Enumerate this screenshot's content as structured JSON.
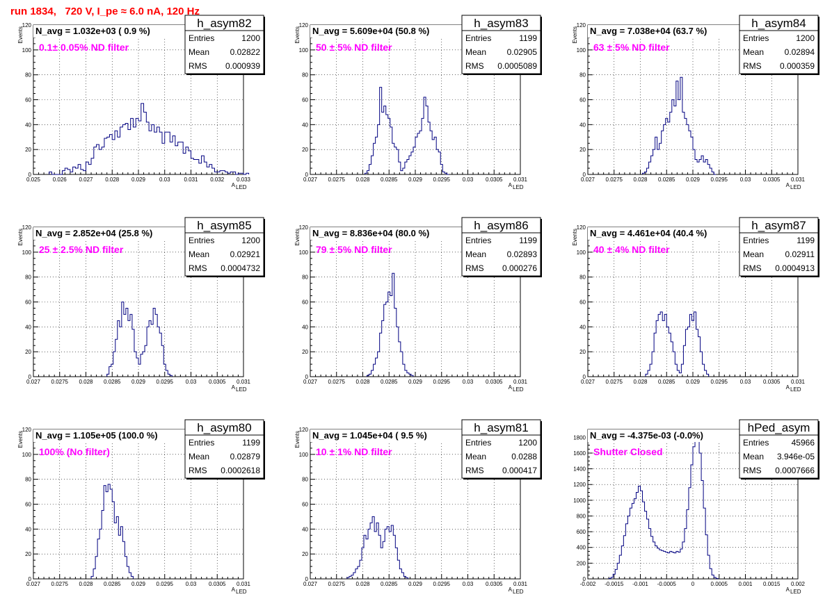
{
  "page": {
    "title": "run 1834,   720 V, I_pe ≈ 6.0 nA, 120 Hz"
  },
  "chart_data": [
    {
      "type": "bar",
      "hist_name": "h_asym82",
      "nbox": "N_avg = 1.032e+03 ( 0.9 %)",
      "filter_label": "0.1± 0.05% ND filter",
      "stats": [
        [
          "Entries",
          "1200"
        ],
        [
          "Mean",
          "0.02822"
        ],
        [
          "RMS",
          "0.000939"
        ]
      ],
      "xlim": [
        0.025,
        0.033
      ],
      "ylim": [
        0,
        120
      ],
      "xticks": [
        0.025,
        0.026,
        0.027,
        0.028,
        0.029,
        0.03,
        0.031,
        0.032,
        0.033
      ],
      "xtick_labels": [
        "0.025",
        "0.026",
        "0.027",
        "0.028",
        "0.029",
        "0.03",
        "0.031",
        "0.032",
        "0.033"
      ],
      "yticks": [
        0,
        20,
        40,
        60,
        80,
        100,
        120
      ],
      "ytick_labels": [
        "0",
        "20",
        "40",
        "60",
        "80",
        "100",
        "120"
      ],
      "xlabel": "A",
      "xlabel_sub": "LED",
      "ylabel": "Events",
      "bin_start": 0.0256,
      "bin_width": 0.0001,
      "values": [
        2,
        0,
        0,
        0,
        0,
        3,
        5,
        4,
        2,
        6,
        5,
        8,
        4,
        3,
        10,
        8,
        13,
        22,
        24,
        20,
        22,
        29,
        30,
        32,
        28,
        35,
        30,
        38,
        40,
        41,
        36,
        45,
        38,
        45,
        43,
        57,
        50,
        42,
        35,
        40,
        34,
        38,
        34,
        25,
        34,
        34,
        26,
        31,
        23,
        26,
        26,
        17,
        22,
        19,
        13,
        12,
        12,
        9,
        15,
        10,
        6,
        8,
        5,
        2,
        2,
        3,
        3,
        2,
        1,
        2,
        2,
        0,
        1,
        1,
        0,
        1
      ]
    },
    {
      "type": "bar",
      "hist_name": "h_asym83",
      "nbox": "N_avg = 5.609e+04 (50.8 %)",
      "filter_label": "50 ± 5% ND filter",
      "stats": [
        [
          "Entries",
          "1199"
        ],
        [
          "Mean",
          "0.02905"
        ],
        [
          "RMS",
          "0.0005089"
        ]
      ],
      "xlim": [
        0.027,
        0.031
      ],
      "ylim": [
        0,
        120
      ],
      "xticks": [
        0.027,
        0.0275,
        0.028,
        0.0285,
        0.029,
        0.0295,
        0.03,
        0.0305,
        0.031
      ],
      "xtick_labels": [
        "0.027",
        "0.0275",
        "0.028",
        "0.0285",
        "0.029",
        "0.0295",
        "0.03",
        "0.0305",
        "0.031"
      ],
      "yticks": [
        0,
        20,
        40,
        60,
        80,
        100,
        120
      ],
      "ytick_labels": [
        "0",
        "20",
        "40",
        "60",
        "80",
        "100",
        "120"
      ],
      "xlabel": "A",
      "xlabel_sub": "LED",
      "ylabel": "Events",
      "bin_start": 0.02804,
      "bin_width": 4e-05,
      "values": [
        1,
        3,
        8,
        15,
        25,
        30,
        40,
        70,
        50,
        55,
        48,
        45,
        38,
        25,
        22,
        20,
        10,
        3,
        5,
        10,
        12,
        15,
        18,
        22,
        30,
        33,
        35,
        45,
        62,
        55,
        42,
        35,
        28,
        30,
        20,
        18,
        8,
        2,
        1,
        0
      ]
    },
    {
      "type": "bar",
      "hist_name": "h_asym84",
      "nbox": "N_avg = 7.038e+04 (63.7 %)",
      "filter_label": "63 ± 5% ND filter",
      "stats": [
        [
          "Entries",
          "1200"
        ],
        [
          "Mean",
          "0.02894"
        ],
        [
          "RMS",
          "0.000359"
        ]
      ],
      "xlim": [
        0.027,
        0.031
      ],
      "ylim": [
        0,
        120
      ],
      "xticks": [
        0.027,
        0.0275,
        0.028,
        0.0285,
        0.029,
        0.0295,
        0.03,
        0.0305,
        0.031
      ],
      "xtick_labels": [
        "0.027",
        "0.0275",
        "0.028",
        "0.0285",
        "0.029",
        "0.0295",
        "0.03",
        "0.0305",
        "0.031"
      ],
      "yticks": [
        0,
        20,
        40,
        60,
        80,
        100,
        120
      ],
      "ytick_labels": [
        "0",
        "20",
        "40",
        "60",
        "80",
        "100",
        "120"
      ],
      "xlabel": "A",
      "xlabel_sub": "LED",
      "ylabel": "Events",
      "bin_start": 0.02804,
      "bin_width": 4e-05,
      "values": [
        1,
        2,
        5,
        10,
        15,
        20,
        30,
        20,
        25,
        35,
        40,
        45,
        42,
        50,
        60,
        55,
        75,
        60,
        78,
        50,
        45,
        40,
        35,
        30,
        20,
        12,
        10,
        12,
        15,
        10,
        12,
        8,
        5,
        2,
        0
      ]
    },
    {
      "type": "bar",
      "hist_name": "h_asym85",
      "nbox": "N_avg = 2.852e+04 (25.8 %)",
      "filter_label": "25 ± 2.5% ND filter",
      "stats": [
        [
          "Entries",
          "1200"
        ],
        [
          "Mean",
          "0.02921"
        ],
        [
          "RMS",
          "0.0004732"
        ]
      ],
      "xlim": [
        0.027,
        0.031
      ],
      "ylim": [
        0,
        120
      ],
      "xticks": [
        0.027,
        0.0275,
        0.028,
        0.0285,
        0.029,
        0.0295,
        0.03,
        0.0305,
        0.031
      ],
      "xtick_labels": [
        "0.027",
        "0.0275",
        "0.028",
        "0.0285",
        "0.029",
        "0.0295",
        "0.03",
        "0.0305",
        "0.031"
      ],
      "yticks": [
        0,
        20,
        40,
        60,
        80,
        100,
        120
      ],
      "ytick_labels": [
        "0",
        "20",
        "40",
        "60",
        "80",
        "100",
        "120"
      ],
      "xlabel": "A",
      "xlabel_sub": "LED",
      "ylabel": "Events",
      "bin_start": 0.0284,
      "bin_width": 4e-05,
      "values": [
        2,
        8,
        10,
        20,
        30,
        45,
        40,
        60,
        50,
        55,
        45,
        50,
        38,
        20,
        15,
        10,
        18,
        20,
        25,
        40,
        45,
        42,
        55,
        50,
        40,
        35,
        25,
        10,
        5,
        2,
        1
      ]
    },
    {
      "type": "bar",
      "hist_name": "h_asym86",
      "nbox": "N_avg = 8.836e+04 (80.0 %)",
      "filter_label": "79 ± 5% ND filter",
      "stats": [
        [
          "Entries",
          "1199"
        ],
        [
          "Mean",
          "0.02893"
        ],
        [
          "RMS",
          "0.000276"
        ]
      ],
      "xlim": [
        0.027,
        0.031
      ],
      "ylim": [
        0,
        120
      ],
      "xticks": [
        0.027,
        0.0275,
        0.028,
        0.0285,
        0.029,
        0.0295,
        0.03,
        0.0305,
        0.031
      ],
      "xtick_labels": [
        "0.027",
        "0.0275",
        "0.028",
        "0.0285",
        "0.029",
        "0.0295",
        "0.03",
        "0.0305",
        "0.031"
      ],
      "yticks": [
        0,
        20,
        40,
        60,
        80,
        100,
        120
      ],
      "ytick_labels": [
        "0",
        "20",
        "40",
        "60",
        "80",
        "100",
        "120"
      ],
      "xlabel": "A",
      "xlabel_sub": "LED",
      "ylabel": "Events",
      "bin_start": 0.02808,
      "bin_width": 4e-05,
      "values": [
        1,
        2,
        5,
        10,
        15,
        20,
        35,
        45,
        58,
        60,
        68,
        65,
        83,
        55,
        40,
        28,
        20,
        10,
        5,
        3,
        2,
        1
      ]
    },
    {
      "type": "bar",
      "hist_name": "h_asym87",
      "nbox": "N_avg = 4.461e+04 (40.4 %)",
      "filter_label": "40 ± 4% ND filter",
      "stats": [
        [
          "Entries",
          "1199"
        ],
        [
          "Mean",
          "0.02911"
        ],
        [
          "RMS",
          "0.0004913"
        ]
      ],
      "xlim": [
        0.027,
        0.031
      ],
      "ylim": [
        0,
        120
      ],
      "xticks": [
        0.027,
        0.0275,
        0.028,
        0.0285,
        0.029,
        0.0295,
        0.03,
        0.0305,
        0.031
      ],
      "xtick_labels": [
        "0.027",
        "0.0275",
        "0.028",
        "0.0285",
        "0.029",
        "0.0295",
        "0.03",
        "0.0305",
        "0.031"
      ],
      "yticks": [
        0,
        20,
        40,
        60,
        80,
        100,
        120
      ],
      "ytick_labels": [
        "0",
        "20",
        "40",
        "60",
        "80",
        "100",
        "120"
      ],
      "xlabel": "A",
      "xlabel_sub": "LED",
      "ylabel": "Events",
      "bin_start": 0.0281,
      "bin_width": 4e-05,
      "values": [
        2,
        5,
        10,
        20,
        35,
        45,
        50,
        52,
        45,
        50,
        40,
        35,
        28,
        20,
        10,
        5,
        3,
        10,
        25,
        38,
        40,
        50,
        45,
        52,
        38,
        32,
        20,
        10,
        5,
        2
      ]
    },
    {
      "type": "bar",
      "hist_name": "h_asym80",
      "nbox": "N_avg = 1.105e+05 (100.0 %)",
      "filter_label": "100% (No filter)",
      "stats": [
        [
          "Entries",
          "1199"
        ],
        [
          "Mean",
          "0.02879"
        ],
        [
          "RMS",
          "0.0002618"
        ]
      ],
      "xlim": [
        0.027,
        0.031
      ],
      "ylim": [
        0,
        120
      ],
      "xticks": [
        0.027,
        0.0275,
        0.028,
        0.0285,
        0.029,
        0.0295,
        0.03,
        0.0305,
        0.031
      ],
      "xtick_labels": [
        "0.027",
        "0.0275",
        "0.028",
        "0.0285",
        "0.029",
        "0.0295",
        "0.03",
        "0.0305",
        "0.031"
      ],
      "yticks": [
        0,
        20,
        40,
        60,
        80,
        100,
        120
      ],
      "ytick_labels": [
        "0",
        "20",
        "40",
        "60",
        "80",
        "100",
        "120"
      ],
      "xlabel": "A",
      "xlabel_sub": "LED",
      "ylabel": "Events",
      "bin_start": 0.0281,
      "bin_width": 4e-05,
      "values": [
        2,
        8,
        18,
        32,
        40,
        55,
        75,
        70,
        76,
        72,
        62,
        45,
        50,
        35,
        42,
        30,
        18,
        10,
        5,
        2
      ]
    },
    {
      "type": "bar",
      "hist_name": "h_asym81",
      "nbox": "N_avg = 1.045e+04 ( 9.5 %)",
      "filter_label": "10 ± 1% ND filter",
      "stats": [
        [
          "Entries",
          "1200"
        ],
        [
          "Mean",
          "0.0288"
        ],
        [
          "RMS",
          "0.000417"
        ]
      ],
      "xlim": [
        0.027,
        0.031
      ],
      "ylim": [
        0,
        120
      ],
      "xticks": [
        0.027,
        0.0275,
        0.028,
        0.0285,
        0.029,
        0.0295,
        0.03,
        0.0305,
        0.031
      ],
      "xtick_labels": [
        "0.027",
        "0.0275",
        "0.028",
        "0.0285",
        "0.029",
        "0.0295",
        "0.03",
        "0.0305",
        "0.031"
      ],
      "yticks": [
        0,
        20,
        40,
        60,
        80,
        100,
        120
      ],
      "ytick_labels": [
        "0",
        "20",
        "40",
        "60",
        "80",
        "100",
        "120"
      ],
      "xlabel": "A",
      "xlabel_sub": "LED",
      "ylabel": "Events",
      "bin_start": 0.0277,
      "bin_width": 4e-05,
      "values": [
        1,
        2,
        3,
        5,
        8,
        10,
        15,
        25,
        35,
        32,
        40,
        45,
        50,
        38,
        45,
        35,
        25,
        30,
        40,
        42,
        38,
        43,
        35,
        25,
        15,
        8,
        5,
        2,
        1
      ]
    },
    {
      "type": "bar",
      "hist_name": "hPed_asym",
      "nbox": "N_avg = -4.375e-03 (-0.0%)",
      "filter_label": "Shutter Closed",
      "stats": [
        [
          "Entries",
          "45966"
        ],
        [
          "Mean",
          "3.946e-05"
        ],
        [
          "RMS",
          "0.0007666"
        ]
      ],
      "xlim": [
        -0.002,
        0.002
      ],
      "ylim": [
        0,
        1900
      ],
      "xticks": [
        -0.002,
        -0.0015,
        -0.001,
        -0.0005,
        0,
        0.0005,
        0.001,
        0.0015,
        0.002
      ],
      "xtick_labels": [
        "-0.002",
        "-0.0015",
        "-0.001",
        "-0.0005",
        "0",
        "0.0005",
        "0.001",
        "0.0015",
        "0.002"
      ],
      "yticks": [
        0,
        200,
        400,
        600,
        800,
        1000,
        1200,
        1400,
        1600,
        1800
      ],
      "ytick_labels": [
        "0",
        "200",
        "400",
        "600",
        "800",
        "1000",
        "1200",
        "1400",
        "1600",
        "1800"
      ],
      "xlabel": "A",
      "xlabel_sub": "LED",
      "ylabel": "",
      "bin_start": -0.0016,
      "bin_width": 4e-05,
      "values": [
        5,
        20,
        60,
        120,
        200,
        300,
        420,
        550,
        700,
        800,
        900,
        960,
        1020,
        1100,
        1180,
        1120,
        980,
        860,
        760,
        640,
        540,
        470,
        420,
        390,
        370,
        360,
        350,
        340,
        330,
        350,
        340,
        330,
        350,
        340,
        380,
        470,
        640,
        880,
        1160,
        1450,
        1680,
        1800,
        1830,
        1600,
        1250,
        900,
        560,
        300,
        130,
        50,
        20,
        5
      ]
    }
  ]
}
